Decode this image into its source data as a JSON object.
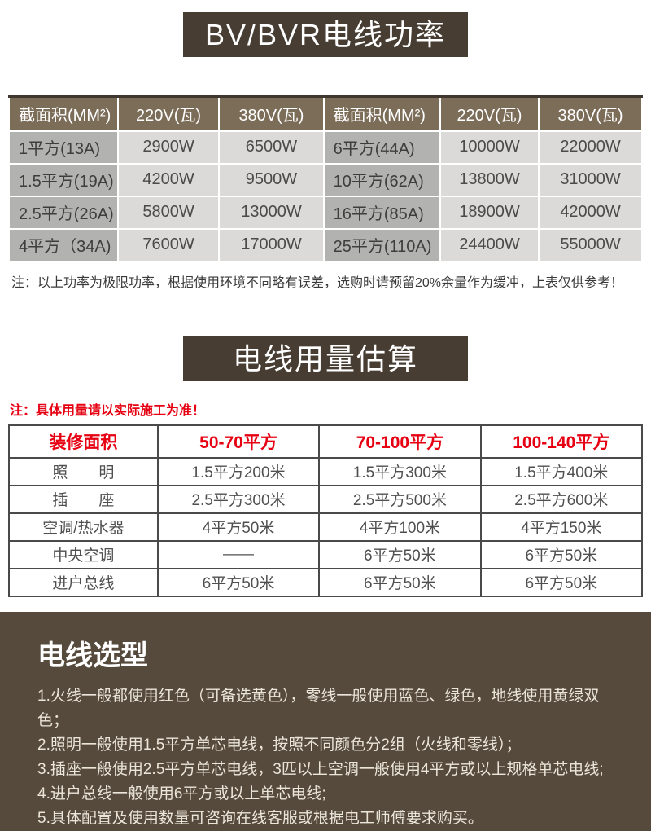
{
  "power_section": {
    "title": "BV/BVR电线功率",
    "table": {
      "headers": [
        "截面积(MM²)",
        "220V(瓦)",
        "380V(瓦)",
        "截面积(MM²)",
        "220V(瓦)",
        "380V(瓦)"
      ],
      "rows": [
        [
          "1平方(13A)",
          "2900W",
          "6500W",
          "6平方(44A)",
          "10000W",
          "22000W"
        ],
        [
          "1.5平方(19A)",
          "4200W",
          "9500W",
          "10平方(62A)",
          "13800W",
          "31000W"
        ],
        [
          "2.5平方(26A)",
          "5800W",
          "13000W",
          "16平方(85A)",
          "18900W",
          "42000W"
        ],
        [
          "4平方（34A)",
          "7600W",
          "17000W",
          "25平方(110A)",
          "24400W",
          "55000W"
        ]
      ]
    },
    "note": "注：以上功率为极限功率，根据使用环境不同略有误差，选购时请预留20%余量作为缓冲，上表仅供参考！"
  },
  "usage_section": {
    "title": "电线用量估算",
    "note": "注：具体用量请以实际施工为准！",
    "table": {
      "headers": [
        "装修面积",
        "50-70平方",
        "70-100平方",
        "100-140平方"
      ],
      "rows": [
        [
          "照　　明",
          "1.5平方200米",
          "1.5平方300米",
          "1.5平方400米"
        ],
        [
          "插　　座",
          "2.5平方300米",
          "2.5平方500米",
          "2.5平方600米"
        ],
        [
          "空调/热水器",
          "4平方50米",
          "4平方100米",
          "4平方150米"
        ],
        [
          "中央空调",
          "——",
          "6平方50米",
          "6平方50米"
        ],
        [
          "进户总线",
          "6平方50米",
          "6平方50米",
          "6平方50米"
        ]
      ]
    }
  },
  "selection_section": {
    "title": "电线选型",
    "items": [
      "1.火线一般都使用红色（可备选黄色），零线一般使用蓝色、绿色，地线使用黄绿双色；",
      "2.照明一般使用1.5平方单芯电线，按照不同颜色分2组（火线和零线）；",
      "3.插座一般使用2.5平方单芯电线，3匹以上空调一般使用4平方或以上规格单芯电线;",
      "4.进户总线一般使用6平方或以上单芯电线;",
      "5.具体配置及使用数量可咨询在线客服或根据电工师傅要求购买。"
    ]
  },
  "colors": {
    "banner_bg": "#473d33",
    "table_header_bg": "#7c6d59",
    "label_cell_bg": "#b2b2b0",
    "data_cell_bg": "#dbdad8",
    "accent_red": "#e60012",
    "usage_border": "#4a4a4a",
    "selection_bg": "#564a3c"
  }
}
